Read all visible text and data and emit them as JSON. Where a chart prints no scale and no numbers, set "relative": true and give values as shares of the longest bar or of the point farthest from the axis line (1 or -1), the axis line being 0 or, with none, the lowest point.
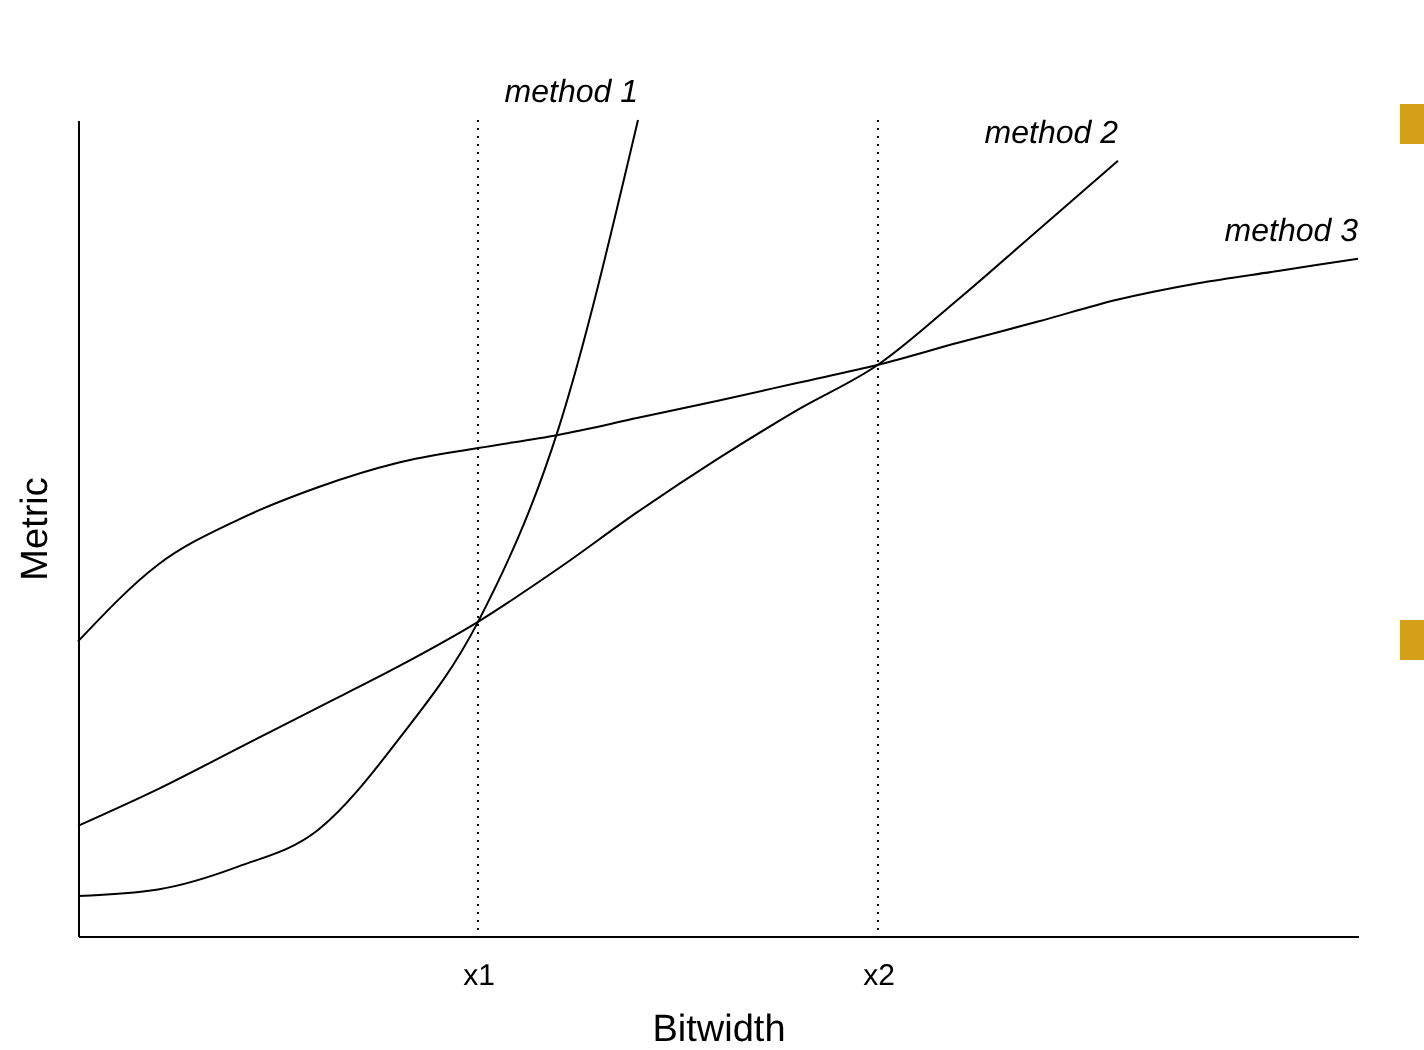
{
  "chart_data": {
    "type": "line",
    "xlabel": "Bitwidth",
    "ylabel": "Metric",
    "relative": true,
    "categories": [
      null,
      null,
      null,
      null,
      null,
      "x1",
      null,
      null,
      null,
      null,
      "x2",
      null,
      null,
      null,
      null,
      null,
      null
    ],
    "series": [
      {
        "name": "method 1",
        "color": "#000000",
        "values": [
          0.049,
          0.057,
          0.085,
          0.13,
          0.24,
          0.385,
          0.62,
          1,
          null,
          null,
          null,
          null,
          null,
          null,
          null,
          null,
          null
        ]
      },
      {
        "name": "method 2",
        "color": "#000000",
        "values": [
          0.135,
          0.18,
          0.23,
          0.28,
          0.33,
          0.385,
          0.45,
          0.52,
          0.585,
          0.645,
          0.7,
          0.78,
          0.865,
          0.95,
          null,
          null,
          null
        ]
      },
      {
        "name": "method 3",
        "color": "#000000",
        "values": [
          0.361,
          0.455,
          0.51,
          0.55,
          0.58,
          0.598,
          0.614,
          0.635,
          0.656,
          0.678,
          0.7,
          0.727,
          0.753,
          0.78,
          0.8,
          0.815,
          0.83
        ]
      }
    ],
    "ref_lines": [
      {
        "axis": "x",
        "value": "x1",
        "line_style": "dotted",
        "color": "#000000"
      },
      {
        "axis": "x",
        "value": "x2",
        "line_style": "dotted",
        "color": "#000000"
      }
    ],
    "grid": false,
    "legend": false,
    "marker": "none",
    "line_style": "solid"
  }
}
